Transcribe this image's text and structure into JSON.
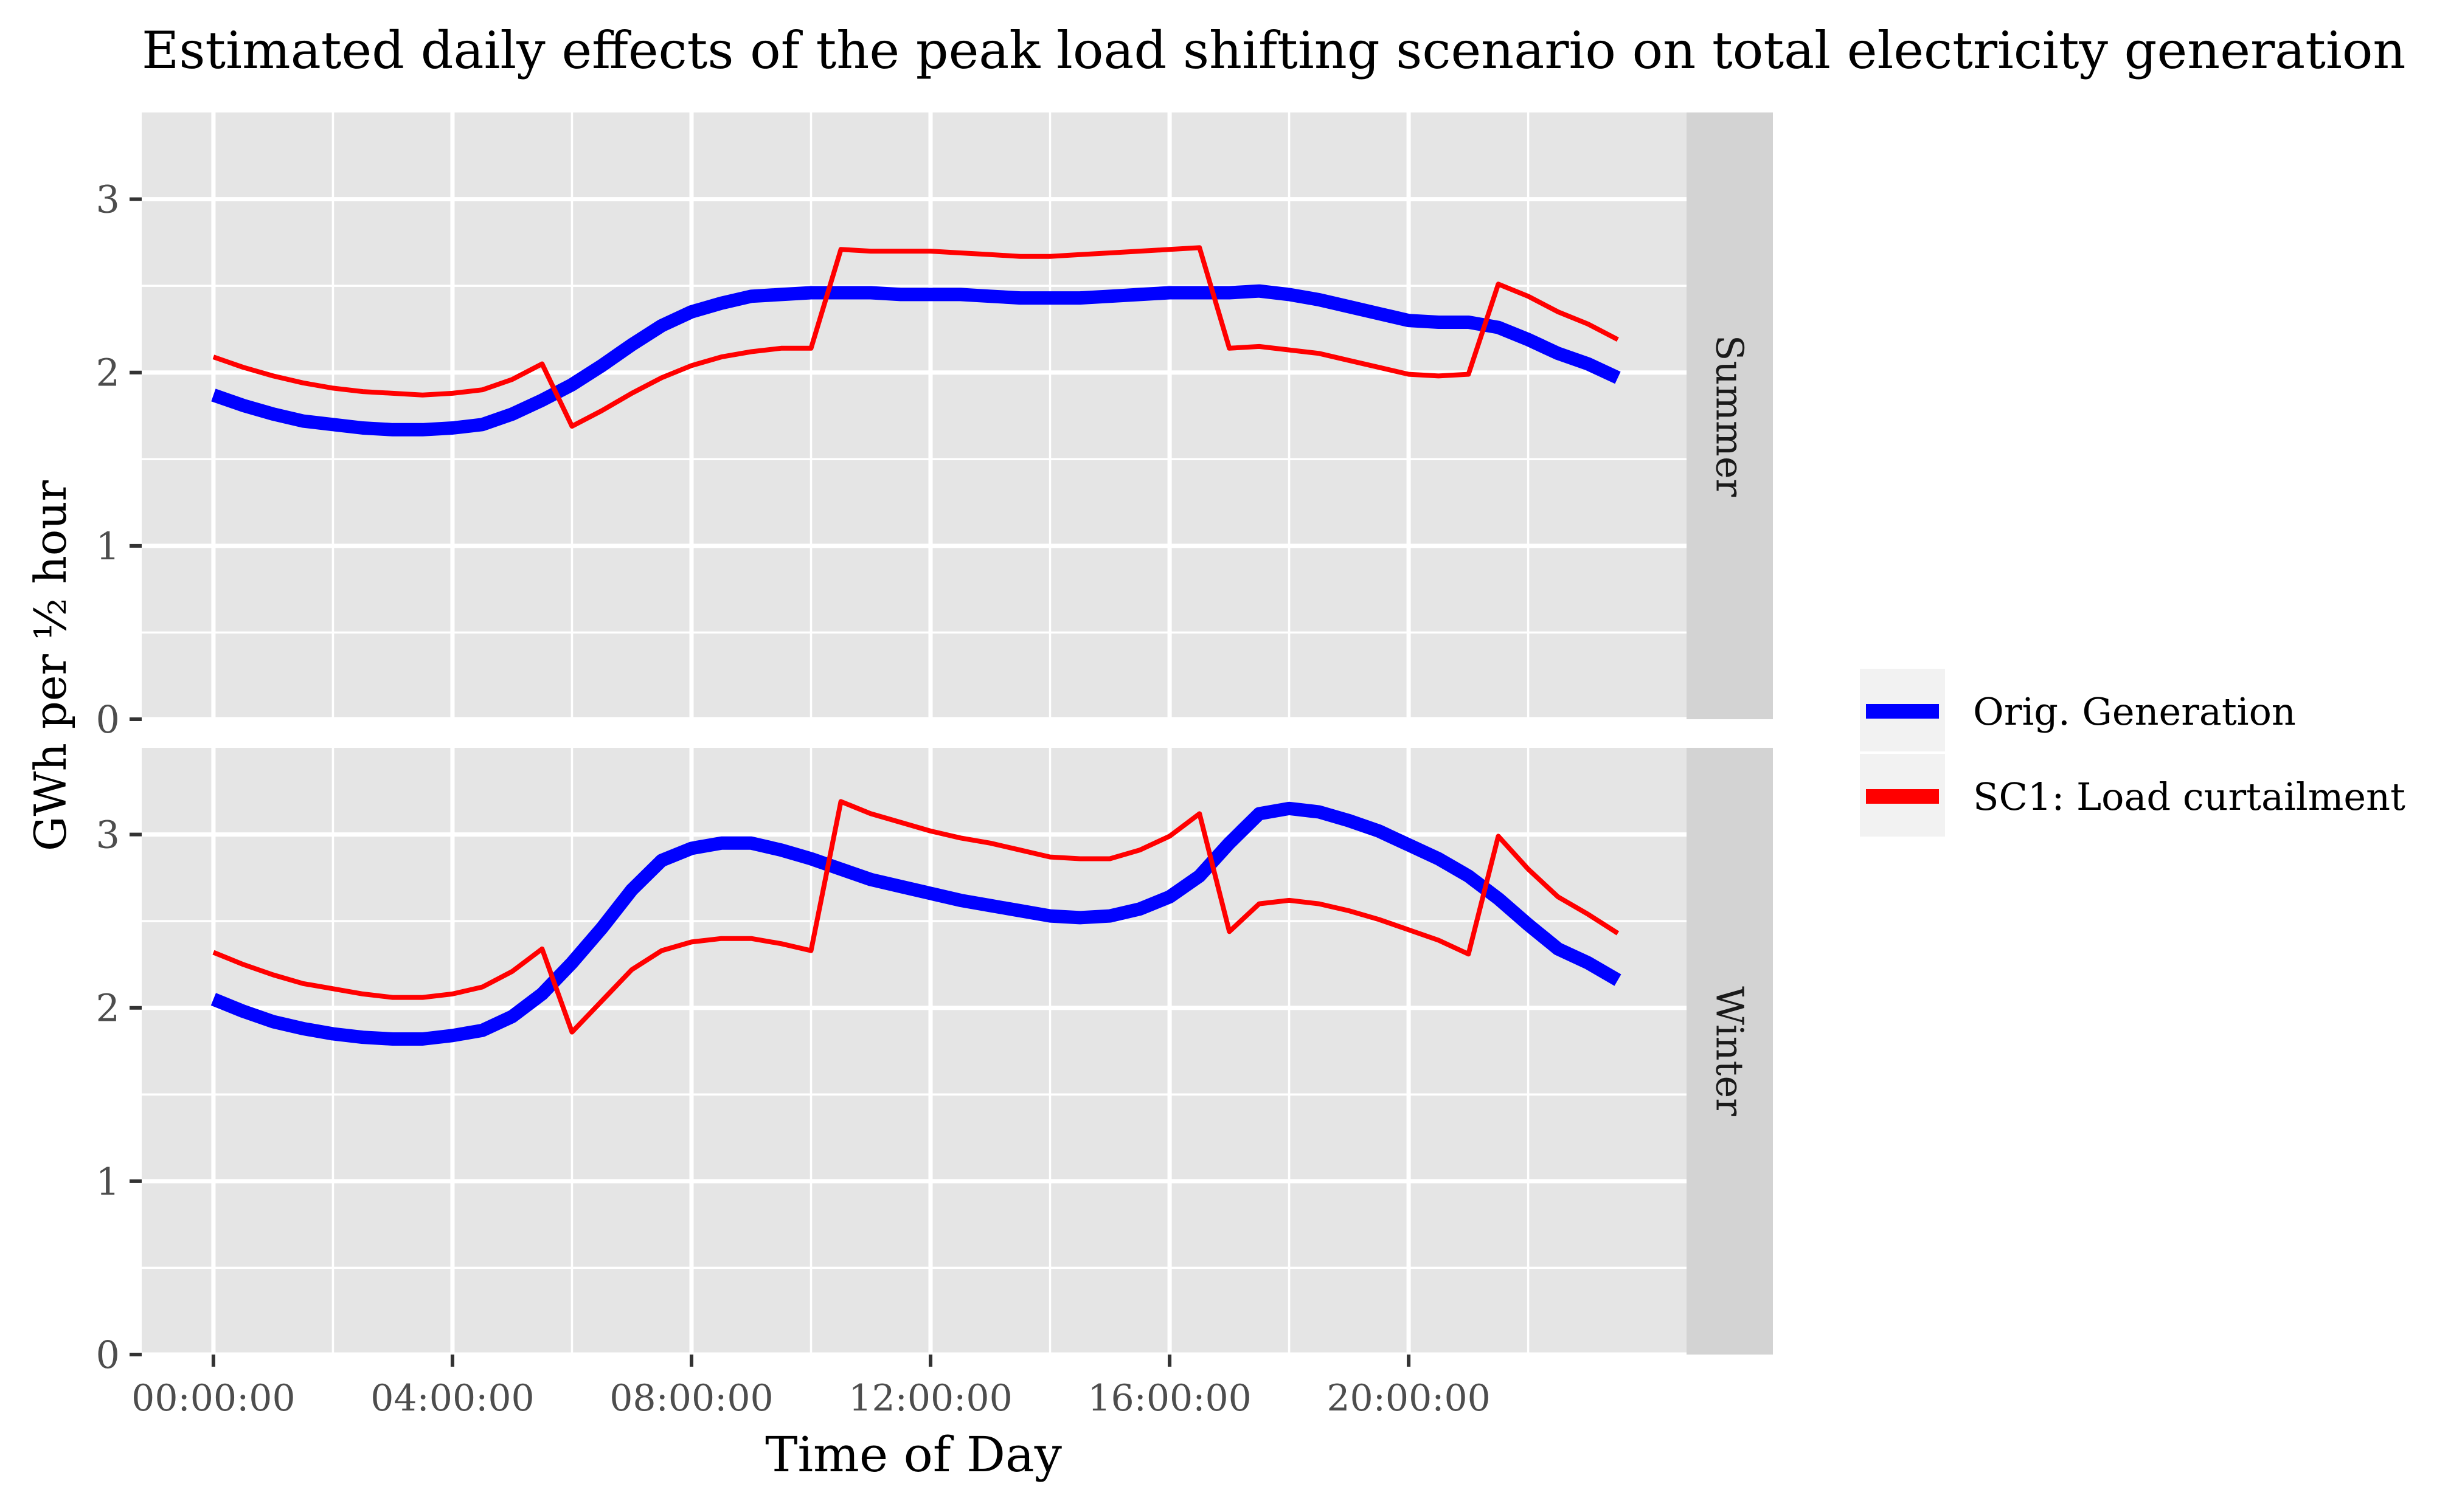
{
  "chart_data": {
    "type": "line",
    "title": "Estimated daily effects of the peak load shifting scenario on total electricity generation",
    "xlabel": "Time of Day",
    "ylabel": "GWh per ½ hour",
    "x_tick_labels": [
      "00:00:00",
      "04:00:00",
      "08:00:00",
      "12:00:00",
      "16:00:00",
      "20:00:00"
    ],
    "x_tick_hours": [
      0,
      4,
      8,
      12,
      16,
      20
    ],
    "x_range_hours": [
      -1.2,
      24.65
    ],
    "y_ticks": [
      0,
      1,
      2,
      3
    ],
    "ylim": [
      0,
      3.5
    ],
    "grid": true,
    "legend_position": "right",
    "facets": [
      {
        "label": "Summer",
        "x_hours": [
          0,
          0.5,
          1,
          1.5,
          2,
          2.5,
          3,
          3.5,
          4,
          4.5,
          5,
          5.5,
          6,
          6.5,
          7,
          7.5,
          8,
          8.5,
          9,
          9.5,
          10,
          10.5,
          11,
          11.5,
          12,
          12.5,
          13,
          13.5,
          14,
          14.5,
          15,
          15.5,
          16,
          16.5,
          17,
          17.5,
          18,
          18.5,
          19,
          19.5,
          20,
          20.5,
          21,
          21.5,
          22,
          22.5,
          23,
          23.5
        ],
        "series": [
          {
            "name": "Orig. Generation",
            "values": [
              1.87,
              1.81,
              1.76,
              1.72,
              1.7,
              1.68,
              1.67,
              1.67,
              1.68,
              1.7,
              1.76,
              1.84,
              1.93,
              2.04,
              2.16,
              2.27,
              2.35,
              2.4,
              2.44,
              2.45,
              2.46,
              2.46,
              2.46,
              2.45,
              2.45,
              2.45,
              2.44,
              2.43,
              2.43,
              2.43,
              2.44,
              2.45,
              2.46,
              2.46,
              2.46,
              2.47,
              2.45,
              2.42,
              2.38,
              2.34,
              2.3,
              2.29,
              2.29,
              2.26,
              2.19,
              2.11,
              2.05,
              1.97
            ]
          },
          {
            "name": "SC1: Load curtailment",
            "values": [
              2.09,
              2.03,
              1.98,
              1.94,
              1.91,
              1.89,
              1.88,
              1.87,
              1.88,
              1.9,
              1.96,
              2.05,
              1.69,
              1.78,
              1.88,
              1.97,
              2.04,
              2.09,
              2.12,
              2.14,
              2.14,
              2.71,
              2.7,
              2.7,
              2.7,
              2.69,
              2.68,
              2.67,
              2.67,
              2.68,
              2.69,
              2.7,
              2.71,
              2.72,
              2.14,
              2.15,
              2.13,
              2.11,
              2.07,
              2.03,
              1.99,
              1.98,
              1.99,
              2.51,
              2.44,
              2.35,
              2.28,
              2.19
            ]
          }
        ]
      },
      {
        "label": "Winter",
        "x_hours": [
          0,
          0.5,
          1,
          1.5,
          2,
          2.5,
          3,
          3.5,
          4,
          4.5,
          5,
          5.5,
          6,
          6.5,
          7,
          7.5,
          8,
          8.5,
          9,
          9.5,
          10,
          10.5,
          11,
          11.5,
          12,
          12.5,
          13,
          13.5,
          14,
          14.5,
          15,
          15.5,
          16,
          16.5,
          17,
          17.5,
          18,
          18.5,
          19,
          19.5,
          20,
          20.5,
          21,
          21.5,
          22,
          22.5,
          23,
          23.5
        ],
        "series": [
          {
            "name": "Orig. Generation",
            "values": [
              2.05,
              1.98,
              1.92,
              1.88,
              1.85,
              1.83,
              1.82,
              1.82,
              1.84,
              1.87,
              1.95,
              2.08,
              2.26,
              2.46,
              2.68,
              2.85,
              2.92,
              2.95,
              2.95,
              2.91,
              2.86,
              2.8,
              2.74,
              2.7,
              2.66,
              2.62,
              2.59,
              2.56,
              2.53,
              2.52,
              2.53,
              2.57,
              2.64,
              2.76,
              2.95,
              3.12,
              3.15,
              3.13,
              3.08,
              3.02,
              2.94,
              2.86,
              2.76,
              2.63,
              2.48,
              2.34,
              2.26,
              2.16
            ]
          },
          {
            "name": "SC1: Load curtailment",
            "values": [
              2.32,
              2.25,
              2.19,
              2.14,
              2.11,
              2.08,
              2.06,
              2.06,
              2.08,
              2.12,
              2.21,
              2.34,
              1.86,
              2.04,
              2.22,
              2.33,
              2.38,
              2.4,
              2.4,
              2.37,
              2.33,
              3.19,
              3.12,
              3.07,
              3.02,
              2.98,
              2.95,
              2.91,
              2.87,
              2.86,
              2.86,
              2.91,
              2.99,
              3.12,
              2.44,
              2.6,
              2.62,
              2.6,
              2.56,
              2.51,
              2.45,
              2.39,
              2.31,
              2.99,
              2.8,
              2.64,
              2.54,
              2.43
            ]
          }
        ]
      }
    ],
    "legend": [
      {
        "name": "Orig. Generation",
        "color": "#0000ff"
      },
      {
        "name": "SC1: Load curtailment",
        "color": "#ff0000"
      }
    ],
    "colors": {
      "panel_background": "#e5e5e5",
      "strip_background": "#d3d3d3",
      "grid_line": "#ffffff",
      "orig_generation": "#0000ff",
      "sc1_load_curtailment": "#ff0000"
    }
  }
}
